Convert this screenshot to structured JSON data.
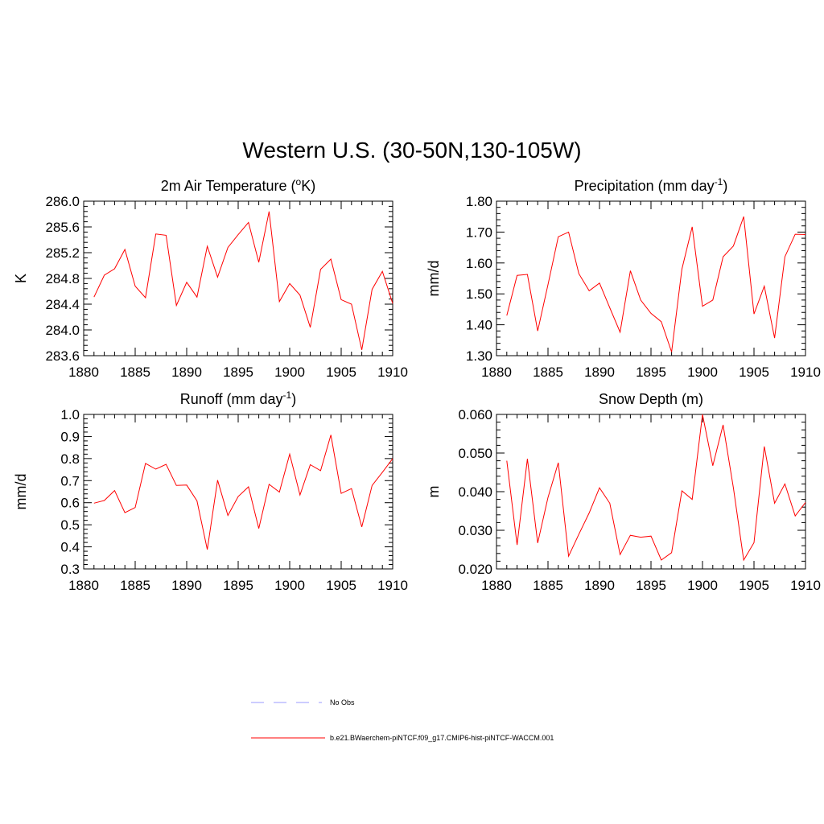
{
  "page_title": "Western U.S. (30-50N,130-105W)",
  "series_color": "#ff0000",
  "obs_color": "#9999ff",
  "legend": {
    "obs_label": "No Obs",
    "model_label": "b.e21.BWaerchem-piNTCF.f09_g17.CMIP6-hist-piNTCF-WACCM.001"
  },
  "chart_data": [
    {
      "type": "line",
      "title_main": "2m Air Temperature (",
      "title_sup": "o",
      "title_end": "K)",
      "ylabel": "K",
      "xlim": [
        1880,
        1910
      ],
      "ylim": [
        283.6,
        286.0
      ],
      "xticks": [
        1880,
        1885,
        1890,
        1895,
        1900,
        1905,
        1910
      ],
      "yticks": [
        283.6,
        284.0,
        284.4,
        284.8,
        285.2,
        285.6,
        286.0
      ],
      "ytick_labels": [
        "283.6",
        "284.0",
        "284.4",
        "284.8",
        "285.2",
        "285.6",
        "286.0"
      ],
      "x": [
        1881,
        1882,
        1883,
        1884,
        1885,
        1886,
        1887,
        1888,
        1889,
        1890,
        1891,
        1892,
        1893,
        1894,
        1895,
        1896,
        1897,
        1898,
        1899,
        1900,
        1901,
        1902,
        1903,
        1904,
        1905,
        1906,
        1907,
        1908,
        1909,
        1910
      ],
      "values": [
        284.51,
        284.85,
        284.95,
        285.25,
        284.68,
        284.5,
        285.49,
        285.47,
        284.38,
        284.74,
        284.51,
        285.3,
        284.82,
        285.28,
        285.48,
        285.67,
        285.05,
        285.84,
        284.44,
        284.72,
        284.54,
        284.04,
        284.94,
        285.1,
        284.47,
        284.4,
        283.69,
        284.63,
        284.91,
        284.41
      ]
    },
    {
      "type": "line",
      "title_main": "Precipitation (mm day",
      "title_sup": "-1",
      "title_end": ")",
      "ylabel": "mm/d",
      "xlim": [
        1880,
        1910
      ],
      "ylim": [
        1.3,
        1.8
      ],
      "xticks": [
        1880,
        1885,
        1890,
        1895,
        1900,
        1905,
        1910
      ],
      "yticks": [
        1.3,
        1.4,
        1.5,
        1.6,
        1.7,
        1.8
      ],
      "ytick_labels": [
        "1.30",
        "1.40",
        "1.50",
        "1.60",
        "1.70",
        "1.80"
      ],
      "x": [
        1881,
        1882,
        1883,
        1884,
        1885,
        1886,
        1887,
        1888,
        1889,
        1890,
        1891,
        1892,
        1893,
        1894,
        1895,
        1896,
        1897,
        1898,
        1899,
        1900,
        1901,
        1902,
        1903,
        1904,
        1905,
        1906,
        1907,
        1908,
        1909,
        1910
      ],
      "values": [
        1.43,
        1.56,
        1.563,
        1.38,
        1.53,
        1.685,
        1.7,
        1.565,
        1.51,
        1.535,
        1.455,
        1.376,
        1.575,
        1.48,
        1.437,
        1.41,
        1.312,
        1.58,
        1.717,
        1.46,
        1.48,
        1.62,
        1.655,
        1.75,
        1.435,
        1.525,
        1.357,
        1.62,
        1.693,
        1.692
      ]
    },
    {
      "type": "line",
      "title_main": "Runoff (mm day",
      "title_sup": "-1",
      "title_end": ")",
      "ylabel": "mm/d",
      "xlim": [
        1880,
        1910
      ],
      "ylim": [
        0.3,
        1.0
      ],
      "xticks": [
        1880,
        1885,
        1890,
        1895,
        1900,
        1905,
        1910
      ],
      "yticks": [
        0.3,
        0.4,
        0.5,
        0.6,
        0.7,
        0.8,
        0.9,
        1.0
      ],
      "ytick_labels": [
        "0.3",
        "0.4",
        "0.5",
        "0.6",
        "0.7",
        "0.8",
        "0.9",
        "1.0"
      ],
      "x": [
        1881,
        1882,
        1883,
        1884,
        1885,
        1886,
        1887,
        1888,
        1889,
        1890,
        1891,
        1892,
        1893,
        1894,
        1895,
        1896,
        1897,
        1898,
        1899,
        1900,
        1901,
        1902,
        1903,
        1904,
        1905,
        1906,
        1907,
        1908,
        1909,
        1910
      ],
      "values": [
        0.598,
        0.61,
        0.655,
        0.555,
        0.578,
        0.778,
        0.752,
        0.774,
        0.678,
        0.68,
        0.608,
        0.388,
        0.702,
        0.542,
        0.628,
        0.672,
        0.483,
        0.683,
        0.648,
        0.82,
        0.635,
        0.772,
        0.745,
        0.907,
        0.642,
        0.664,
        0.49,
        0.678,
        0.738,
        0.8
      ]
    },
    {
      "type": "line",
      "title_main": "Snow Depth (m)",
      "title_sup": "",
      "title_end": "",
      "ylabel": "m",
      "xlim": [
        1880,
        1910
      ],
      "ylim": [
        0.02,
        0.06
      ],
      "xticks": [
        1880,
        1885,
        1890,
        1895,
        1900,
        1905,
        1910
      ],
      "yticks": [
        0.02,
        0.03,
        0.04,
        0.05,
        0.06
      ],
      "ytick_labels": [
        "0.020",
        "0.030",
        "0.040",
        "0.050",
        "0.060"
      ],
      "x": [
        1881,
        1882,
        1883,
        1884,
        1885,
        1886,
        1887,
        1888,
        1889,
        1890,
        1891,
        1892,
        1893,
        1894,
        1895,
        1896,
        1897,
        1898,
        1899,
        1900,
        1901,
        1902,
        1903,
        1904,
        1905,
        1906,
        1907,
        1908,
        1909,
        1910
      ],
      "values": [
        0.048,
        0.0262,
        0.0485,
        0.0267,
        0.0385,
        0.0475,
        0.0233,
        0.029,
        0.0345,
        0.041,
        0.037,
        0.0237,
        0.0287,
        0.0282,
        0.0285,
        0.0223,
        0.0242,
        0.0402,
        0.038,
        0.06,
        0.0467,
        0.0573,
        0.041,
        0.0223,
        0.0268,
        0.0517,
        0.037,
        0.042,
        0.0337,
        0.0372
      ]
    }
  ]
}
